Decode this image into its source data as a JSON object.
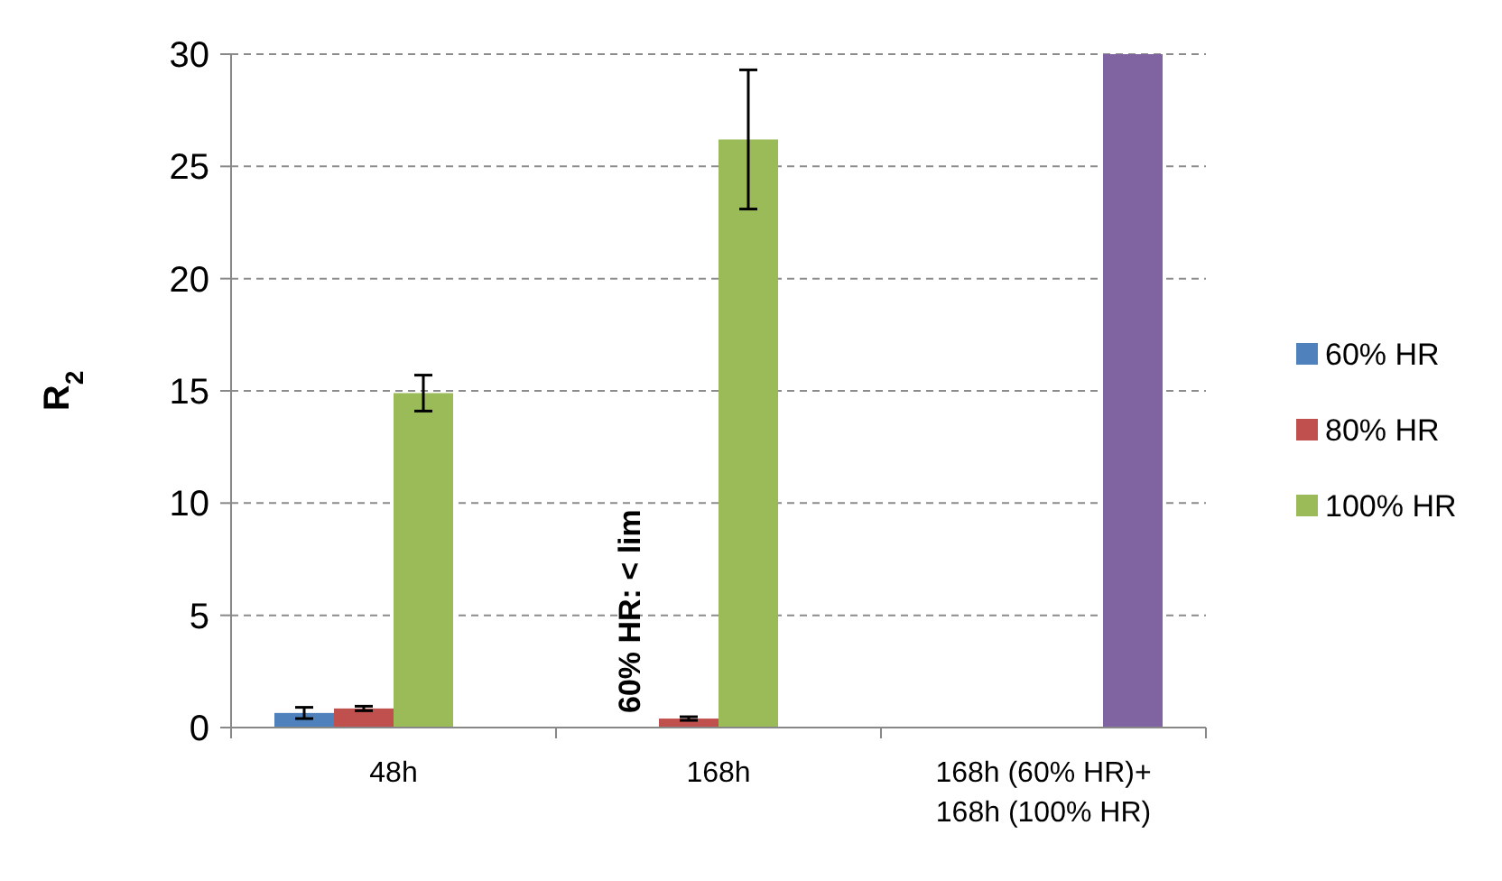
{
  "chart_data": {
    "type": "bar",
    "ylabel": "R$_{2}$",
    "categories": [
      "48h",
      "168h",
      "168h (60% HR)+\n168h (100% HR)"
    ],
    "series": [
      {
        "name": "60% HR",
        "color": "#4f81bd",
        "values": [
          0.65,
          null,
          null
        ],
        "errors": [
          0.25,
          null,
          null
        ]
      },
      {
        "name": "80% HR",
        "color": "#c0504d",
        "values": [
          0.85,
          0.4,
          null
        ],
        "errors": [
          0.1,
          0.08,
          null
        ]
      },
      {
        "name": "100% HR",
        "color": "#9bbb59",
        "values": [
          14.9,
          26.2,
          null
        ],
        "errors": [
          0.8,
          3.1,
          null
        ]
      },
      {
        "color": "#8064a2",
        "values": [
          null,
          null,
          30
        ]
      }
    ],
    "ylim": [
      0,
      30
    ],
    "yticks": [
      0,
      5,
      10,
      15,
      20,
      25,
      30
    ],
    "grid": "y",
    "legend": "right",
    "annotations": [
      {
        "text": "60% HR: < lim",
        "x": "168h"
      }
    ]
  }
}
